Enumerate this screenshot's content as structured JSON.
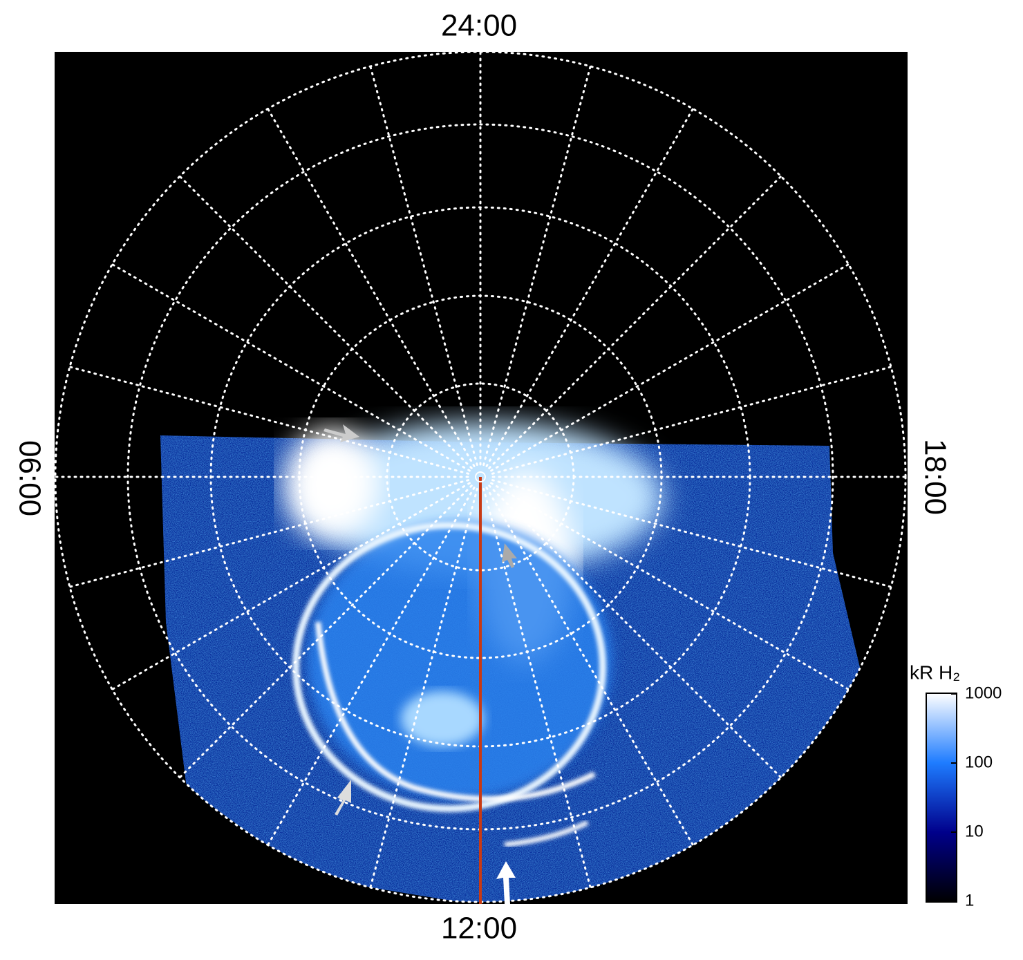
{
  "chart_data": {
    "type": "polar-image",
    "labels": {
      "top": "24:00",
      "bottom": "12:00",
      "left": "06:00",
      "right": "18:00"
    },
    "colorbar": {
      "label": "kR H₂",
      "scale": "log",
      "ylim": [
        1,
        1000
      ],
      "yticks": [
        1,
        10,
        100,
        1000
      ],
      "colors": [
        "#000000",
        "#00008b",
        "#1e7cff",
        "#ffffff"
      ]
    }
  }
}
